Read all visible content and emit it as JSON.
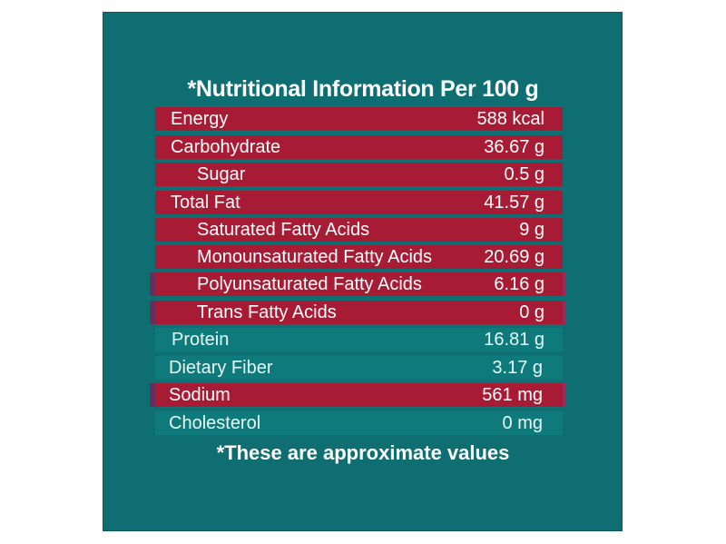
{
  "title": "*Nutritional Information Per 100 g",
  "rows": [
    {
      "label": "Energy",
      "value": "588 kcal"
    },
    {
      "label": "Carbohydrate",
      "value": "36.67 g"
    },
    {
      "label": "Sugar",
      "value": "0.5 g"
    },
    {
      "label": "Total Fat",
      "value": "41.57 g"
    },
    {
      "label": "Saturated Fatty Acids",
      "value": "9 g"
    },
    {
      "label": "Monounsaturated Fatty Acids",
      "value": "20.69 g"
    },
    {
      "label": "Polyunsaturated Fatty Acids",
      "value": "6.16 g"
    },
    {
      "label": "Trans Fatty Acids",
      "value": "0 g"
    },
    {
      "label": "Protein",
      "value": "16.81 g"
    },
    {
      "label": "Dietary Fiber",
      "value": "3.17 g"
    },
    {
      "label": "Sodium",
      "value": "561 mg"
    },
    {
      "label": "Cholesterol",
      "value": "0 mg"
    }
  ],
  "footer": "*These are approximate values",
  "colors": {
    "background": "#0e6e72",
    "row_highlight": "#a71c34",
    "text": "#ffffff"
  }
}
